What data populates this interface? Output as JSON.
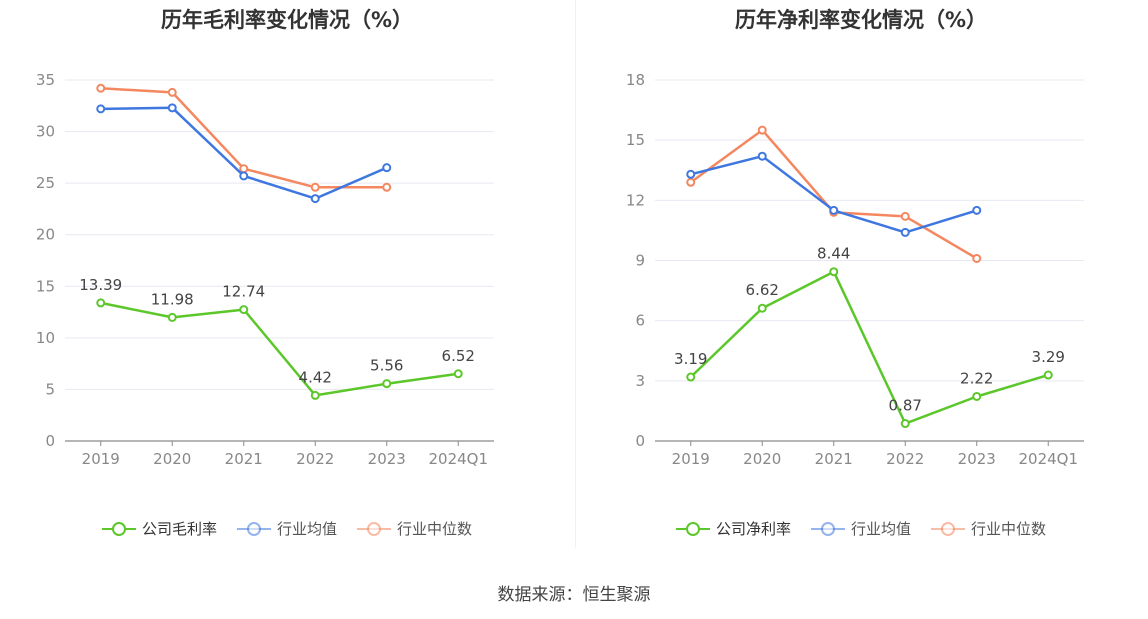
{
  "chart_data": [
    {
      "type": "line",
      "title": "历年毛利率变化情况（%）",
      "categories": [
        "2019",
        "2020",
        "2021",
        "2022",
        "2023",
        "2024Q1"
      ],
      "ylim": [
        0,
        35
      ],
      "yticks": [
        0,
        5,
        10,
        15,
        20,
        25,
        30,
        35
      ],
      "grid": true,
      "legend_position": "bottom",
      "series": [
        {
          "name": "公司毛利率",
          "color": "#5cc72a",
          "labels": true,
          "values": [
            13.39,
            11.98,
            12.74,
            4.42,
            5.56,
            6.52
          ]
        },
        {
          "name": "行业均值",
          "color": "#3f77e0",
          "labels": false,
          "values": [
            32.2,
            32.3,
            25.7,
            23.5,
            26.5,
            null
          ]
        },
        {
          "name": "行业中位数",
          "color": "#f4875f",
          "labels": false,
          "values": [
            34.2,
            33.8,
            26.4,
            24.6,
            24.6,
            null
          ]
        }
      ]
    },
    {
      "type": "line",
      "title": "历年净利率变化情况（%）",
      "categories": [
        "2019",
        "2020",
        "2021",
        "2022",
        "2023",
        "2024Q1"
      ],
      "ylim": [
        0,
        18
      ],
      "yticks": [
        0,
        3,
        6,
        9,
        12,
        15,
        18
      ],
      "grid": true,
      "legend_position": "bottom",
      "series": [
        {
          "name": "公司净利率",
          "color": "#5cc72a",
          "labels": true,
          "values": [
            3.19,
            6.62,
            8.44,
            0.87,
            2.22,
            3.29
          ]
        },
        {
          "name": "行业均值",
          "color": "#3f77e0",
          "labels": false,
          "values": [
            13.3,
            14.2,
            11.5,
            10.4,
            11.5,
            null
          ]
        },
        {
          "name": "行业中位数",
          "color": "#f4875f",
          "labels": false,
          "values": [
            12.9,
            15.5,
            11.4,
            11.2,
            9.1,
            null
          ]
        }
      ]
    }
  ],
  "source_text": "数据来源：恒生聚源"
}
